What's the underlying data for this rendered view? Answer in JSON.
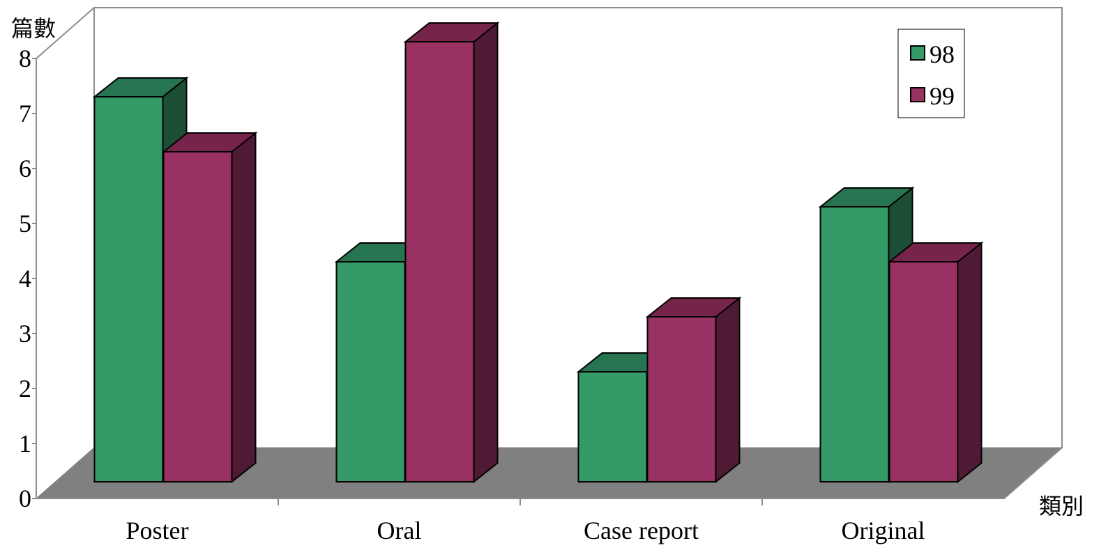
{
  "chart_data": {
    "type": "bar",
    "style": "3d-clustered-column",
    "categories": [
      "Poster",
      "Oral",
      "Case report",
      "Original"
    ],
    "series": [
      {
        "name": "98",
        "values": [
          7,
          4,
          2,
          5
        ],
        "color": "#349b68",
        "top_color": "#267550",
        "side_color": "#1d4f36"
      },
      {
        "name": "99",
        "values": [
          6,
          8,
          3,
          4
        ],
        "color": "#993263",
        "top_color": "#77244b",
        "side_color": "#4f1b34"
      }
    ],
    "y_ticks": [
      "0",
      "1",
      "2",
      "3",
      "4",
      "5",
      "6",
      "7",
      "8"
    ],
    "ylim": [
      0,
      8
    ],
    "ylabel": "篇數",
    "xlabel": "類別",
    "title": "",
    "legend_position": "top-right",
    "grid": false,
    "floor_color": "#808080"
  }
}
